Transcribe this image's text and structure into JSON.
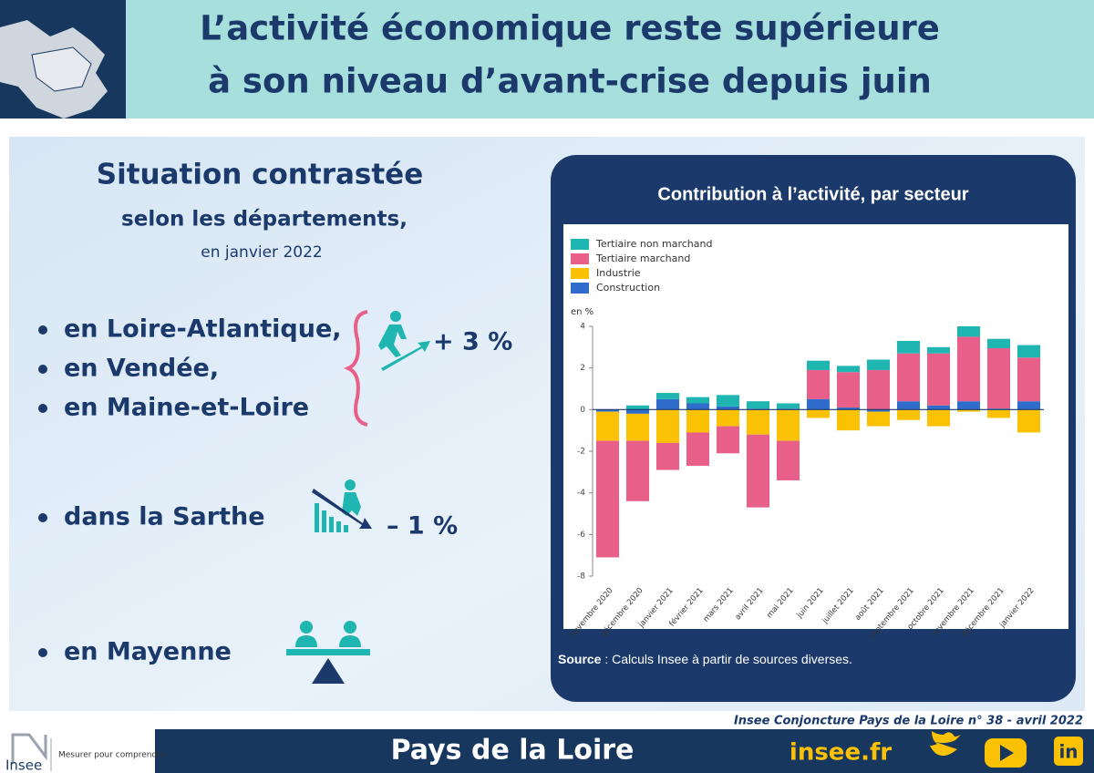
{
  "header": {
    "title_line1": "L’activité économique reste supérieure",
    "title_line2": "à son niveau d’avant-crise depuis juin"
  },
  "left": {
    "heading": "Situation contrastée",
    "subheading": "selon les départements,",
    "date": "en janvier 2022",
    "group_up": [
      "en Loire-Atlantique,",
      "en Vendée,",
      "en Maine-et-Loire"
    ],
    "up_value": "+ 3 %",
    "down_item": "dans la Sarthe",
    "down_value": "– 1 %",
    "stable_item": "en Mayenne"
  },
  "chart_data": {
    "type": "stacked_bar",
    "title": "Contribution à l’activité, par secteur",
    "ylabel": "en %",
    "categories": [
      "novembre 2020",
      "décembre 2020",
      "janvier 2021",
      "février 2021",
      "mars 2021",
      "avril 2021",
      "mai 2021",
      "juin 2021",
      "juillet 2021",
      "août 2021",
      "septembre 2021",
      "octobre 2021",
      "novembre 2021",
      "décembre 2021",
      "janvier 2022"
    ],
    "series": [
      {
        "name": "Tertiaire non marchand",
        "color": "#1fb5b0",
        "values": [
          0,
          0.2,
          0.3,
          0.3,
          0.55,
          0.35,
          0.25,
          0.45,
          0.3,
          0.5,
          0.6,
          0.3,
          0.5,
          0.45,
          0.6
        ]
      },
      {
        "name": "Tertiaire marchand",
        "color": "#e8608a",
        "values": [
          -5.6,
          -2.9,
          -1.3,
          -1.6,
          -1.3,
          -3.5,
          -1.9,
          1.4,
          1.7,
          1.9,
          2.3,
          2.5,
          3.1,
          2.9,
          2.1
        ]
      },
      {
        "name": "Industrie",
        "color": "#fbc105",
        "values": [
          -1.4,
          -1.3,
          -1.6,
          -1.1,
          -0.8,
          -1.2,
          -1.5,
          -0.4,
          -1.0,
          -0.7,
          -0.5,
          -0.8,
          -0.1,
          -0.4,
          -1.1
        ]
      },
      {
        "name": "Construction",
        "color": "#2f6ccb",
        "values": [
          -0.1,
          -0.2,
          0.5,
          0.3,
          0.15,
          0.05,
          0.05,
          0.5,
          0.1,
          -0.1,
          0.4,
          0.2,
          0.4,
          0.05,
          0.4
        ]
      }
    ],
    "ylim": [
      -8,
      4
    ],
    "yticks": [
      -8,
      -6,
      -4,
      -2,
      0,
      2,
      4
    ],
    "grid": false,
    "legend": "top-left"
  },
  "source": {
    "label": "Source",
    "text": " : Calculs Insee à partir de sources diverses."
  },
  "footer": {
    "publication": "Insee Conjoncture Pays de la Loire n° 38 - avril 2022",
    "region": "Pays de la Loire",
    "site": "insee.fr",
    "logo": "Insee",
    "tagline": "Mesurer pour comprendre"
  }
}
